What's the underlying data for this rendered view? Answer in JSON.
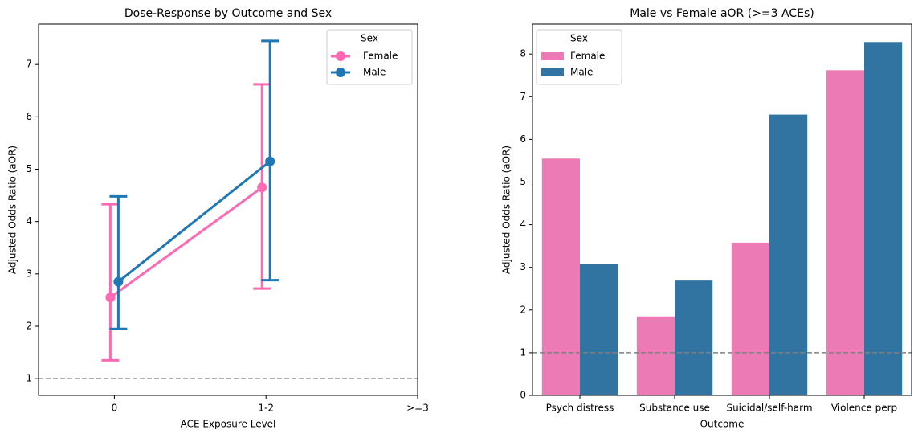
{
  "chart_data": [
    {
      "type": "line",
      "title": "Dose-Response by Outcome and Sex",
      "xlabel": "ACE Exposure Level",
      "ylabel": "Adjusted Odds Ratio (aOR)",
      "categories": [
        "0",
        "1-2",
        ">=3"
      ],
      "xlim": [
        -0.5,
        2.0
      ],
      "ylim": [
        0.68,
        7.77
      ],
      "yticks": [
        1,
        2,
        3,
        4,
        5,
        6,
        7
      ],
      "reference_line": 1,
      "legend": {
        "title": "Sex",
        "position": "upper right"
      },
      "series": [
        {
          "name": "Female",
          "color": "#ff69b4",
          "values": [
            2.55,
            4.65,
            null
          ],
          "ci_low": [
            1.35,
            2.72,
            null
          ],
          "ci_high": [
            4.33,
            6.62,
            null
          ]
        },
        {
          "name": "Male",
          "color": "#1f77b4",
          "values": [
            2.85,
            5.15,
            null
          ],
          "ci_low": [
            1.95,
            2.88,
            null
          ],
          "ci_high": [
            4.48,
            7.45,
            null
          ]
        }
      ]
    },
    {
      "type": "bar",
      "title": "Male vs Female aOR (>=3 ACEs)",
      "xlabel": "Outcome",
      "ylabel": "Adjusted Odds Ratio (aOR)",
      "categories": [
        "Psych distress",
        "Substance use",
        "Suicidal/self-harm",
        "Violence perp"
      ],
      "ylim": [
        0,
        8.7
      ],
      "yticks": [
        0,
        1,
        2,
        3,
        4,
        5,
        6,
        7,
        8
      ],
      "reference_line": 1,
      "legend": {
        "title": "Sex",
        "position": "upper left"
      },
      "series": [
        {
          "name": "Female",
          "color": "#ec7bb5",
          "values": [
            5.55,
            1.85,
            3.58,
            7.62
          ]
        },
        {
          "name": "Male",
          "color": "#3274a1",
          "values": [
            3.08,
            2.69,
            6.58,
            8.28
          ]
        }
      ]
    }
  ]
}
